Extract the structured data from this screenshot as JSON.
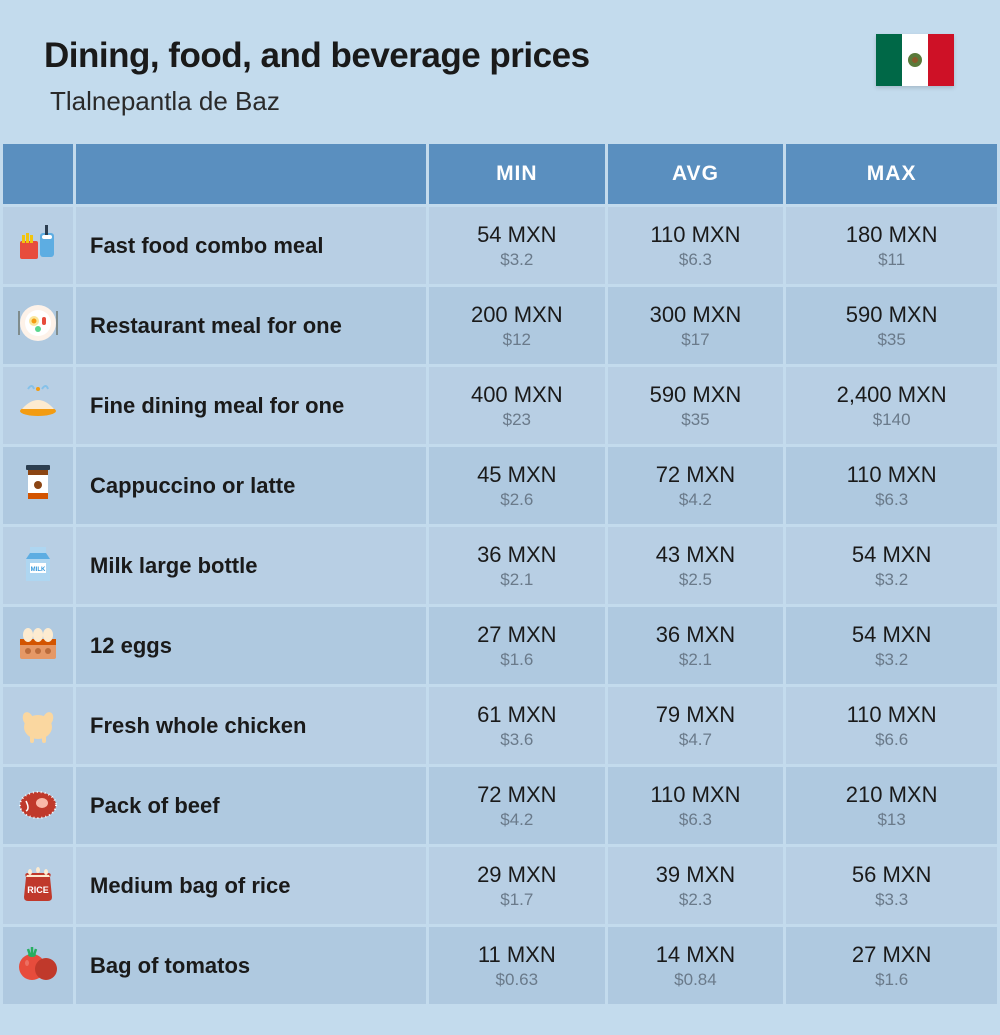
{
  "header": {
    "title": "Dining, food, and beverage prices",
    "subtitle": "Tlalnepantla de Baz"
  },
  "columns": {
    "min": "MIN",
    "avg": "AVG",
    "max": "MAX"
  },
  "colors": {
    "page_bg": "#c3dbed",
    "header_bg": "#5a8fbf",
    "row_odd": "#b8cfe4",
    "row_even": "#afc9e0",
    "title": "#1a1a1a",
    "usd": "#6a7a8a",
    "flag_green": "#006847",
    "flag_white": "#ffffff",
    "flag_red": "#ce1126"
  },
  "typography": {
    "title_size": 35,
    "title_weight": 800,
    "subtitle_size": 26,
    "header_size": 21,
    "name_size": 22,
    "mxn_size": 22,
    "usd_size": 17
  },
  "rows": [
    {
      "icon": "fastfood",
      "name": "Fast food combo meal",
      "min_mxn": "54 MXN",
      "min_usd": "$3.2",
      "avg_mxn": "110 MXN",
      "avg_usd": "$6.3",
      "max_mxn": "180 MXN",
      "max_usd": "$11"
    },
    {
      "icon": "restaurant",
      "name": "Restaurant meal for one",
      "min_mxn": "200 MXN",
      "min_usd": "$12",
      "avg_mxn": "300 MXN",
      "avg_usd": "$17",
      "max_mxn": "590 MXN",
      "max_usd": "$35"
    },
    {
      "icon": "finedining",
      "name": "Fine dining meal for one",
      "min_mxn": "400 MXN",
      "min_usd": "$23",
      "avg_mxn": "590 MXN",
      "avg_usd": "$35",
      "max_mxn": "2,400 MXN",
      "max_usd": "$140"
    },
    {
      "icon": "coffee",
      "name": "Cappuccino or latte",
      "min_mxn": "45 MXN",
      "min_usd": "$2.6",
      "avg_mxn": "72 MXN",
      "avg_usd": "$4.2",
      "max_mxn": "110 MXN",
      "max_usd": "$6.3"
    },
    {
      "icon": "milk",
      "name": "Milk large bottle",
      "min_mxn": "36 MXN",
      "min_usd": "$2.1",
      "avg_mxn": "43 MXN",
      "avg_usd": "$2.5",
      "max_mxn": "54 MXN",
      "max_usd": "$3.2"
    },
    {
      "icon": "eggs",
      "name": "12 eggs",
      "min_mxn": "27 MXN",
      "min_usd": "$1.6",
      "avg_mxn": "36 MXN",
      "avg_usd": "$2.1",
      "max_mxn": "54 MXN",
      "max_usd": "$3.2"
    },
    {
      "icon": "chicken",
      "name": "Fresh whole chicken",
      "min_mxn": "61 MXN",
      "min_usd": "$3.6",
      "avg_mxn": "79 MXN",
      "avg_usd": "$4.7",
      "max_mxn": "110 MXN",
      "max_usd": "$6.6"
    },
    {
      "icon": "beef",
      "name": "Pack of beef",
      "min_mxn": "72 MXN",
      "min_usd": "$4.2",
      "avg_mxn": "110 MXN",
      "avg_usd": "$6.3",
      "max_mxn": "210 MXN",
      "max_usd": "$13"
    },
    {
      "icon": "rice",
      "name": "Medium bag of rice",
      "min_mxn": "29 MXN",
      "min_usd": "$1.7",
      "avg_mxn": "39 MXN",
      "avg_usd": "$2.3",
      "max_mxn": "56 MXN",
      "max_usd": "$3.3"
    },
    {
      "icon": "tomato",
      "name": "Bag of tomatos",
      "min_mxn": "11 MXN",
      "min_usd": "$0.63",
      "avg_mxn": "14 MXN",
      "avg_usd": "$0.84",
      "max_mxn": "27 MXN",
      "max_usd": "$1.6"
    }
  ]
}
